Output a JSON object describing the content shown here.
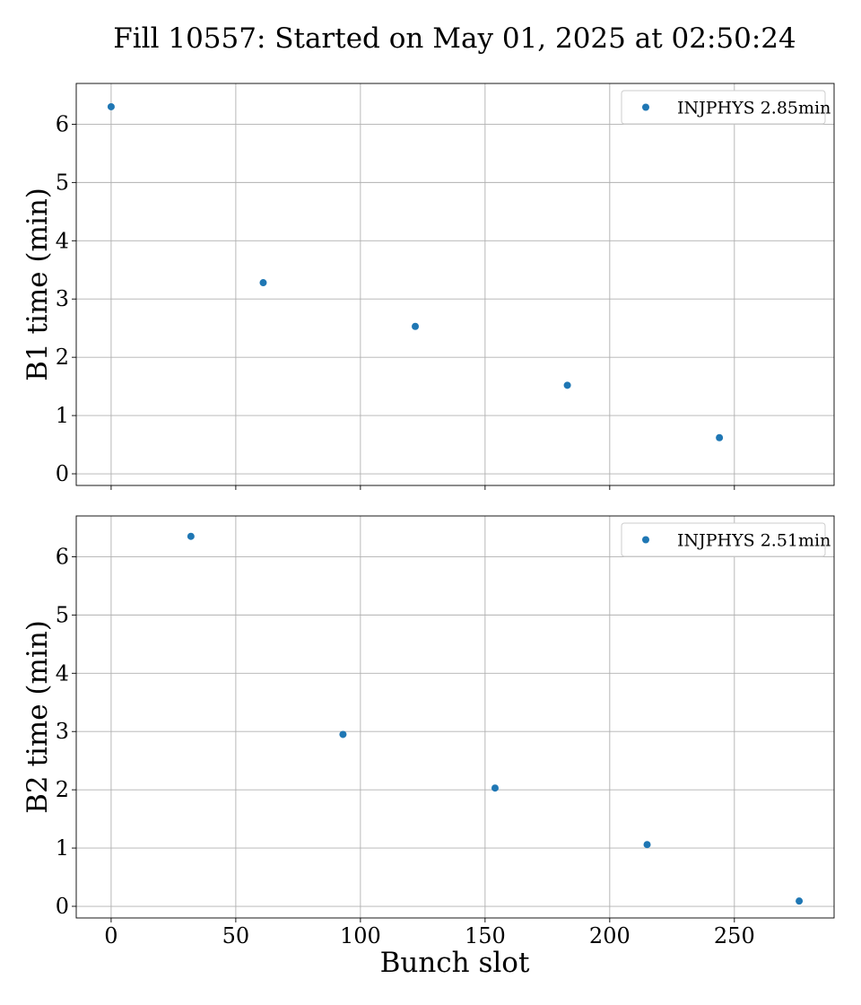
{
  "chart_data": {
    "title": "Fill 10557: Started on May 01, 2025 at 02:50:24",
    "xlabel": "Bunch slot",
    "xlim": [
      -14,
      290
    ],
    "xticks": [
      0,
      50,
      100,
      150,
      200,
      250
    ],
    "grid": true,
    "marker_color": "#1f77b4",
    "panels": [
      {
        "type": "scatter",
        "ylabel": "B1 time (min)",
        "ylim": [
          -0.2,
          6.7
        ],
        "yticks": [
          0,
          1,
          2,
          3,
          4,
          5,
          6
        ],
        "legend_position": "top-right",
        "show_xtick_labels": false,
        "series": [
          {
            "name": "INJPHYS 2.85min",
            "points": [
              {
                "x": 0,
                "y": 6.3
              },
              {
                "x": 61,
                "y": 3.28
              },
              {
                "x": 122,
                "y": 2.53
              },
              {
                "x": 183,
                "y": 1.52
              },
              {
                "x": 244,
                "y": 0.62
              }
            ]
          }
        ]
      },
      {
        "type": "scatter",
        "ylabel": "B2 time (min)",
        "ylim": [
          -0.2,
          6.7
        ],
        "yticks": [
          0,
          1,
          2,
          3,
          4,
          5,
          6
        ],
        "legend_position": "top-right",
        "show_xtick_labels": true,
        "series": [
          {
            "name": "INJPHYS 2.51min",
            "points": [
              {
                "x": 32,
                "y": 6.35
              },
              {
                "x": 93,
                "y": 2.95
              },
              {
                "x": 154,
                "y": 2.03
              },
              {
                "x": 215,
                "y": 1.06
              },
              {
                "x": 276,
                "y": 0.09
              }
            ]
          }
        ]
      }
    ]
  }
}
